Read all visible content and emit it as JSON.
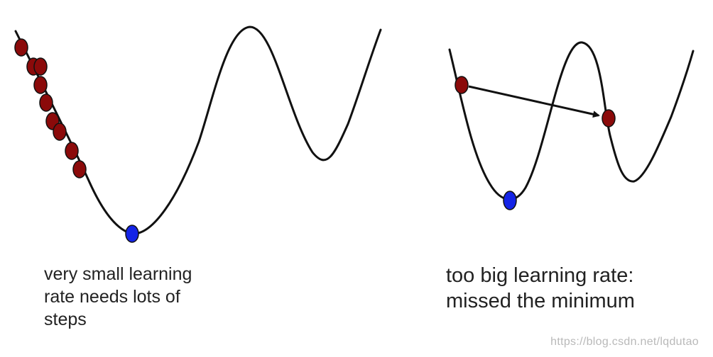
{
  "panels": {
    "left": {
      "caption_lines": [
        "very small learning",
        "rate needs lots of",
        "steps"
      ]
    },
    "right": {
      "caption_lines": [
        "too big learning rate:",
        "missed the minimum"
      ]
    }
  },
  "watermark": "https://blog.csdn.net/lqdutao",
  "colors": {
    "curve": "#111111",
    "step_marker_fill": "#8b0a0a",
    "minimum_marker_fill": "#1424e6",
    "marker_outline": "#111111"
  },
  "icons": {
    "step_marker": "red-ellipse-marker",
    "minimum_marker": "blue-ellipse-marker",
    "jump_arrow": "arrow-right-icon"
  }
}
